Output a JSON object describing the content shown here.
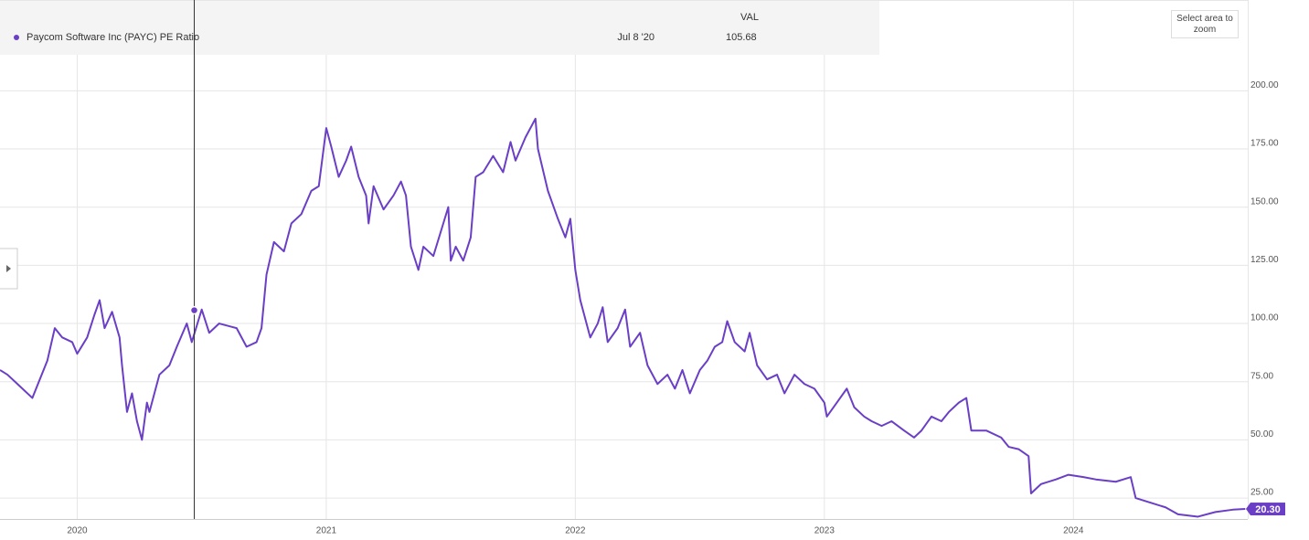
{
  "chart_data": {
    "type": "line",
    "x": [
      2019.69,
      2019.72,
      2019.76,
      2019.82,
      2019.85,
      2019.88,
      2019.91,
      2019.94,
      2019.98,
      2020.0,
      2020.04,
      2020.07,
      2020.09,
      2020.11,
      2020.14,
      2020.17,
      2020.18,
      2020.2,
      2020.22,
      2020.24,
      2020.26,
      2020.28,
      2020.29,
      2020.33,
      2020.37,
      2020.4,
      2020.44,
      2020.46,
      2020.48,
      2020.5,
      2020.53,
      2020.57,
      2020.64,
      2020.68,
      2020.72,
      2020.74,
      2020.76,
      2020.79,
      2020.83,
      2020.86,
      2020.9,
      2020.94,
      2020.97,
      2021.0,
      2021.02,
      2021.05,
      2021.08,
      2021.1,
      2021.13,
      2021.16,
      2021.17,
      2021.19,
      2021.23,
      2021.27,
      2021.3,
      2021.32,
      2021.34,
      2021.37,
      2021.39,
      2021.43,
      2021.47,
      2021.49,
      2021.5,
      2021.52,
      2021.55,
      2021.58,
      2021.6,
      2021.63,
      2021.67,
      2021.71,
      2021.74,
      2021.76,
      2021.8,
      2021.84,
      2021.85,
      2021.89,
      2021.93,
      2021.96,
      2021.98,
      2022.0,
      2022.02,
      2022.06,
      2022.09,
      2022.11,
      2022.13,
      2022.17,
      2022.2,
      2022.22,
      2022.26,
      2022.29,
      2022.33,
      2022.37,
      2022.4,
      2022.43,
      2022.46,
      2022.5,
      2022.53,
      2022.56,
      2022.59,
      2022.61,
      2022.64,
      2022.68,
      2022.7,
      2022.73,
      2022.77,
      2022.81,
      2022.84,
      2022.88,
      2022.92,
      2022.96,
      2023.0,
      2023.01,
      2023.05,
      2023.09,
      2023.12,
      2023.16,
      2023.19,
      2023.23,
      2023.27,
      2023.32,
      2023.36,
      2023.39,
      2023.43,
      2023.47,
      2023.5,
      2023.54,
      2023.57,
      2023.59,
      2023.65,
      2023.71,
      2023.74,
      2023.78,
      2023.82,
      2023.83,
      2023.87,
      2023.93,
      2023.98,
      2024.04,
      2024.09,
      2024.17,
      2024.23,
      2024.25,
      2024.31,
      2024.37,
      2024.42,
      2024.5,
      2024.57,
      2024.64,
      2024.69
    ],
    "series": [
      {
        "name": "Paycom Software Inc (PAYC) PE Ratio",
        "color": "#6a3fc6",
        "values": [
          80,
          78,
          74,
          68,
          76,
          84,
          98,
          94,
          92,
          87,
          94,
          104,
          110,
          98,
          105,
          94,
          82,
          62,
          70,
          58,
          50,
          66,
          62,
          78,
          82,
          90,
          100,
          92,
          99,
          106,
          96,
          100,
          98,
          90,
          92,
          98,
          121,
          135,
          131,
          143,
          147,
          157,
          159,
          184,
          176,
          163,
          170,
          176,
          163,
          155,
          143,
          159,
          149,
          155,
          161,
          155,
          133,
          123,
          133,
          129,
          143,
          150,
          127,
          133,
          127,
          137,
          163,
          165,
          172,
          165,
          178,
          170,
          180,
          188,
          175,
          157,
          145,
          137,
          145,
          123,
          110,
          94,
          100,
          107,
          92,
          98,
          106,
          90,
          96,
          82,
          74,
          78,
          72,
          80,
          70,
          80,
          84,
          90,
          92,
          101,
          92,
          88,
          96,
          82,
          76,
          78,
          70,
          78,
          74,
          72,
          66,
          60,
          66,
          72,
          64,
          60,
          58,
          56,
          58,
          54,
          51,
          54,
          60,
          58,
          62,
          66,
          68,
          54,
          54,
          51,
          47,
          46,
          43,
          27,
          31,
          33,
          35,
          34,
          33,
          32,
          34,
          25,
          23,
          21,
          18,
          17,
          19,
          20,
          20.3
        ],
        "value_labels": [
          null,
          null,
          null,
          null,
          null,
          null,
          null,
          null,
          null,
          null,
          null,
          null,
          null,
          null,
          null,
          null,
          null,
          null,
          null,
          null,
          null,
          null,
          null,
          null,
          null,
          null,
          null,
          null,
          null,
          null,
          null,
          null,
          null,
          null,
          null,
          null,
          null,
          null,
          null,
          null,
          null,
          null,
          null,
          null,
          null,
          null,
          null,
          null,
          null,
          null,
          null,
          null,
          null,
          null,
          null,
          null,
          null,
          null,
          null,
          null,
          null,
          null,
          null,
          null,
          null,
          null,
          null,
          null,
          null,
          null,
          null,
          null,
          null,
          null,
          null,
          null,
          null,
          null,
          null,
          null,
          null,
          null,
          null,
          null,
          null,
          null,
          null,
          null,
          null,
          null,
          null,
          null,
          null,
          null,
          null,
          null,
          null,
          null,
          null,
          null,
          null,
          null,
          null,
          null,
          null,
          null,
          null,
          null,
          null,
          null,
          null,
          null,
          null,
          null,
          null,
          null,
          null,
          null,
          null,
          null,
          null,
          null,
          null,
          null,
          null,
          null,
          null,
          null,
          null,
          null,
          null,
          null,
          null,
          null,
          null,
          null,
          null,
          null,
          null,
          null,
          null,
          null,
          null,
          null,
          null,
          null,
          null,
          null,
          "20.30"
        ]
      }
    ],
    "xlim": [
      2019.69,
      2024.7
    ],
    "xticks": [
      2020,
      2021,
      2022,
      2023,
      2024
    ],
    "ylim": [
      16,
      239
    ],
    "yticks": [
      {
        "value": 25,
        "label": "25.00"
      },
      {
        "value": 50,
        "label": "50.00"
      },
      {
        "value": 75,
        "label": "75.00"
      },
      {
        "value": 100,
        "label": "100.00"
      },
      {
        "value": 125,
        "label": "125.00"
      },
      {
        "value": 150,
        "label": "150.00"
      },
      {
        "value": 175,
        "label": "175.00"
      },
      {
        "value": 200,
        "label": "200.00"
      }
    ],
    "grid": true,
    "tooltip": {
      "header": "VAL",
      "date": "Jul 8 '20",
      "x": 2020.47,
      "value": 105.68
    },
    "zoom_button": "Select area to zoom"
  }
}
